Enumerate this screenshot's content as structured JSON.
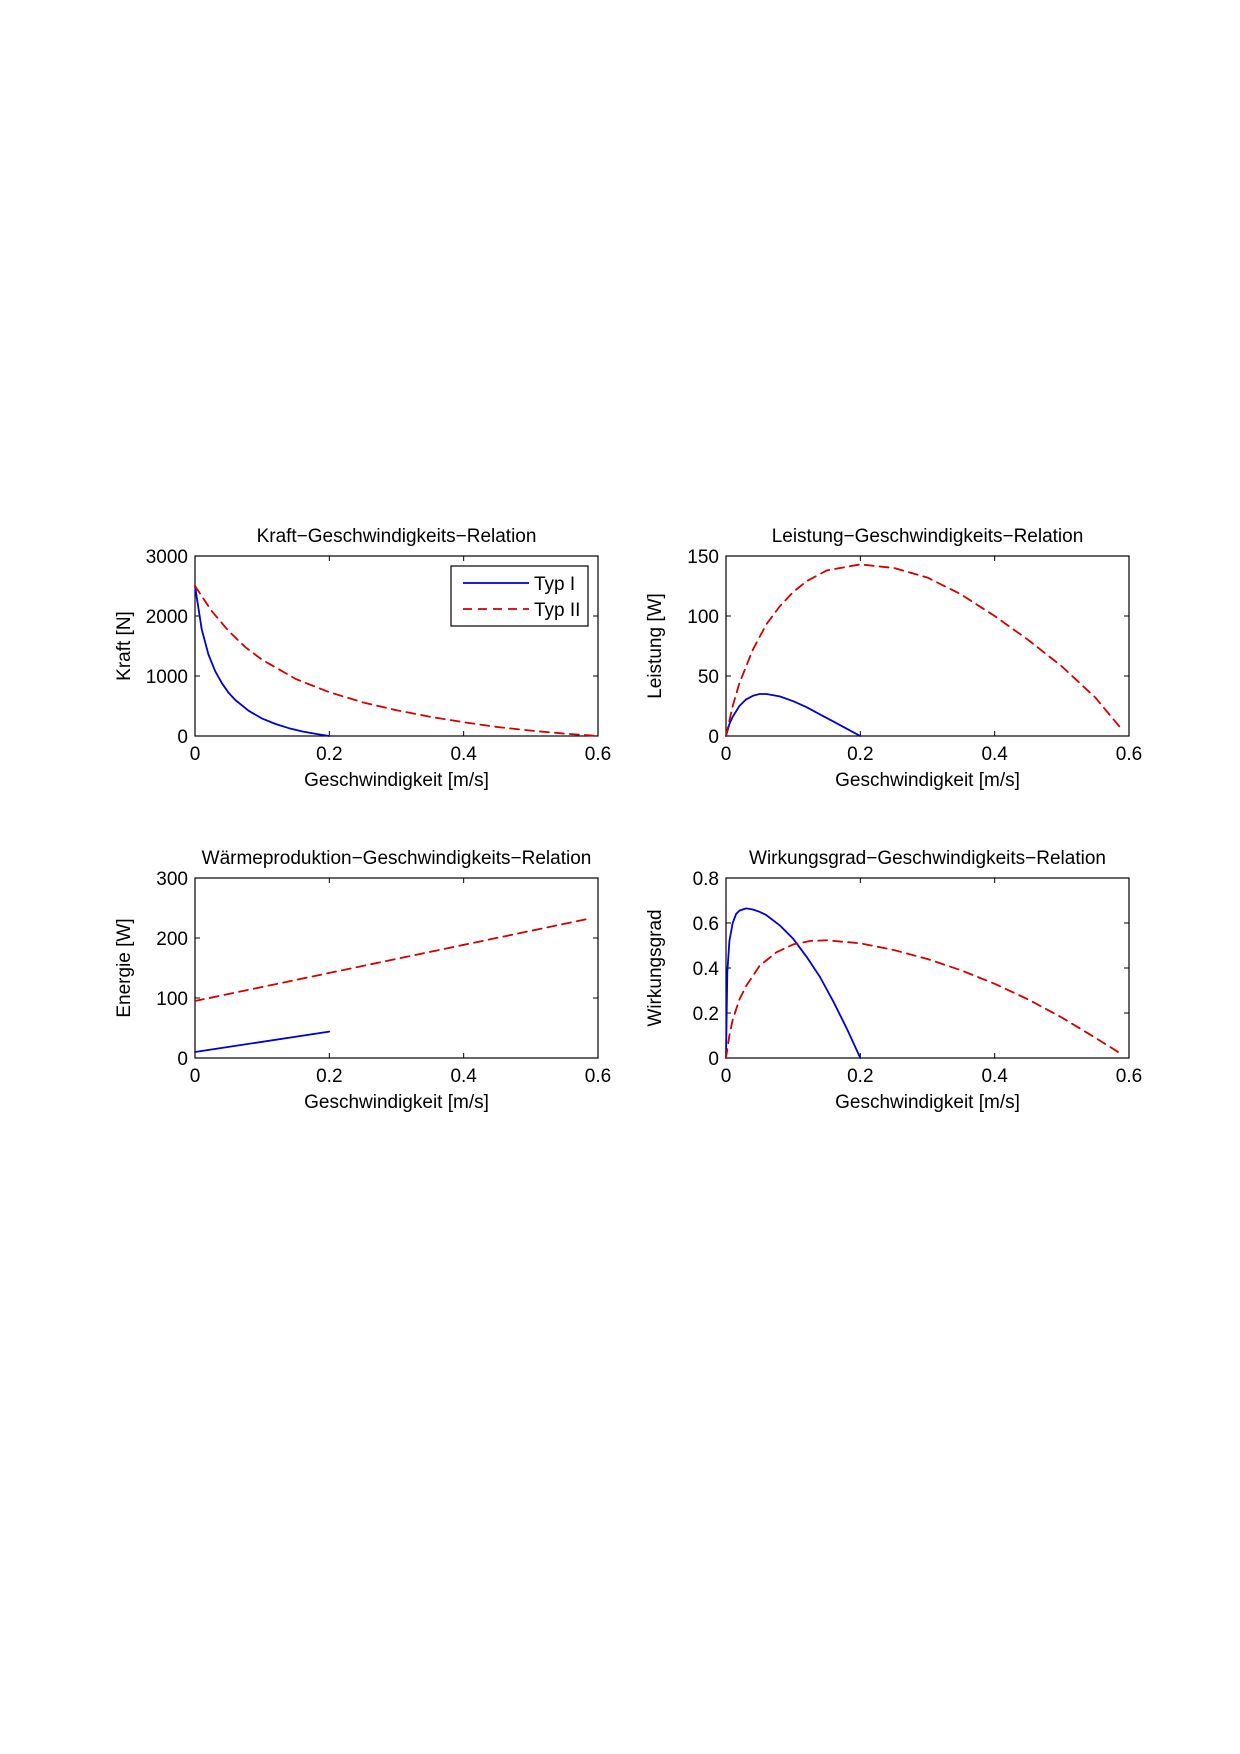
{
  "figure": {
    "background": "#ffffff",
    "series_styles": [
      {
        "key": "typ1",
        "color": "#0000cc",
        "dash": "solid"
      },
      {
        "key": "typ2",
        "color": "#cc0000",
        "dash": "dashed"
      }
    ]
  },
  "chart_data": [
    {
      "type": "line",
      "title": "Kraft−Geschwindigkeits−Relation",
      "xlabel": "Geschwindigkeit [m/s]",
      "ylabel": "Kraft [N]",
      "xlim": [
        0,
        0.6
      ],
      "ylim": [
        0,
        3000
      ],
      "xticks": [
        0,
        0.2,
        0.4,
        0.6
      ],
      "xtick_labels": [
        "0",
        "0.2",
        "0.4",
        "0.6"
      ],
      "yticks": [
        0,
        1000,
        2000,
        3000
      ],
      "ytick_labels": [
        "0",
        "1000",
        "2000",
        "3000"
      ],
      "grid": false,
      "legend": {
        "placement": "top-right",
        "entries": [
          "Typ I",
          "Typ II"
        ]
      },
      "series": [
        {
          "name": "Typ I",
          "style": "typ1",
          "x": [
            0,
            0.01,
            0.02,
            0.03,
            0.04,
            0.05,
            0.06,
            0.08,
            0.1,
            0.12,
            0.14,
            0.16,
            0.18,
            0.2
          ],
          "y": [
            2500,
            1780,
            1360,
            1080,
            880,
            720,
            600,
            420,
            290,
            200,
            130,
            75,
            35,
            0
          ]
        },
        {
          "name": "Typ II",
          "style": "typ2",
          "x": [
            0,
            0.025,
            0.05,
            0.075,
            0.1,
            0.15,
            0.2,
            0.25,
            0.3,
            0.35,
            0.4,
            0.45,
            0.5,
            0.55,
            0.6
          ],
          "y": [
            2500,
            2080,
            1750,
            1480,
            1270,
            950,
            730,
            560,
            430,
            320,
            230,
            150,
            90,
            40,
            0
          ]
        }
      ]
    },
    {
      "type": "line",
      "title": "Leistung−Geschwindigkeits−Relation",
      "xlabel": "Geschwindigkeit [m/s]",
      "ylabel": "Leistung [W]",
      "xlim": [
        0,
        0.6
      ],
      "ylim": [
        0,
        150
      ],
      "xticks": [
        0,
        0.2,
        0.4,
        0.6
      ],
      "xtick_labels": [
        "0",
        "0.2",
        "0.4",
        "0.6"
      ],
      "yticks": [
        0,
        50,
        100,
        150
      ],
      "ytick_labels": [
        "0",
        "50",
        "100",
        "150"
      ],
      "grid": false,
      "series": [
        {
          "name": "",
          "style": "typ1",
          "x": [
            0,
            0.005,
            0.01,
            0.02,
            0.03,
            0.04,
            0.05,
            0.06,
            0.08,
            0.1,
            0.12,
            0.14,
            0.16,
            0.18,
            0.2
          ],
          "y": [
            0,
            10,
            16,
            25,
            30.5,
            33.5,
            35,
            35,
            33,
            29,
            24,
            18,
            12,
            6,
            0
          ]
        },
        {
          "name": "",
          "style": "typ2",
          "x": [
            0,
            0.01,
            0.02,
            0.04,
            0.06,
            0.08,
            0.1,
            0.12,
            0.15,
            0.2,
            0.25,
            0.3,
            0.35,
            0.4,
            0.45,
            0.5,
            0.55,
            0.59
          ],
          "y": [
            0,
            25,
            44,
            72,
            93,
            108,
            120,
            129,
            138,
            143,
            140,
            132,
            118,
            100,
            80,
            58,
            32,
            5
          ]
        }
      ]
    },
    {
      "type": "line",
      "title": "Wärmeproduktion−Geschwindigkeits−Relation",
      "xlabel": "Geschwindigkeit [m/s]",
      "ylabel": "Energie [W]",
      "xlim": [
        0,
        0.6
      ],
      "ylim": [
        0,
        300
      ],
      "xticks": [
        0,
        0.2,
        0.4,
        0.6
      ],
      "xtick_labels": [
        "0",
        "0.2",
        "0.4",
        "0.6"
      ],
      "yticks": [
        0,
        100,
        200,
        300
      ],
      "ytick_labels": [
        "0",
        "100",
        "200",
        "300"
      ],
      "grid": false,
      "series": [
        {
          "name": "",
          "style": "typ1",
          "x": [
            0,
            0.2
          ],
          "y": [
            10,
            44
          ]
        },
        {
          "name": "",
          "style": "typ2",
          "x": [
            0,
            0.59
          ],
          "y": [
            95,
            233
          ]
        }
      ]
    },
    {
      "type": "line",
      "title": "Wirkungsgrad−Geschwindigkeits−Relation",
      "xlabel": "Geschwindigkeit [m/s]",
      "ylabel": "Wirkungsgrad",
      "xlim": [
        0,
        0.6
      ],
      "ylim": [
        0,
        0.8
      ],
      "xticks": [
        0,
        0.2,
        0.4,
        0.6
      ],
      "xtick_labels": [
        "0",
        "0.2",
        "0.4",
        "0.6"
      ],
      "yticks": [
        0,
        0.2,
        0.4,
        0.6,
        0.8
      ],
      "ytick_labels": [
        "0",
        "0.2",
        "0.4",
        "0.6",
        "0.8"
      ],
      "grid": false,
      "series": [
        {
          "name": "",
          "style": "typ1",
          "x": [
            0,
            0.002,
            0.005,
            0.01,
            0.015,
            0.02,
            0.03,
            0.04,
            0.05,
            0.06,
            0.08,
            0.1,
            0.12,
            0.14,
            0.16,
            0.18,
            0.2
          ],
          "y": [
            0,
            0.38,
            0.52,
            0.6,
            0.64,
            0.655,
            0.665,
            0.66,
            0.65,
            0.635,
            0.59,
            0.53,
            0.45,
            0.36,
            0.25,
            0.13,
            0
          ]
        },
        {
          "name": "",
          "style": "typ2",
          "x": [
            0,
            0.005,
            0.01,
            0.02,
            0.03,
            0.05,
            0.075,
            0.1,
            0.125,
            0.15,
            0.2,
            0.25,
            0.3,
            0.35,
            0.4,
            0.45,
            0.5,
            0.55,
            0.59
          ],
          "y": [
            0,
            0.1,
            0.17,
            0.26,
            0.32,
            0.41,
            0.47,
            0.505,
            0.52,
            0.523,
            0.51,
            0.48,
            0.44,
            0.39,
            0.33,
            0.26,
            0.18,
            0.09,
            0.015
          ]
        }
      ]
    }
  ]
}
